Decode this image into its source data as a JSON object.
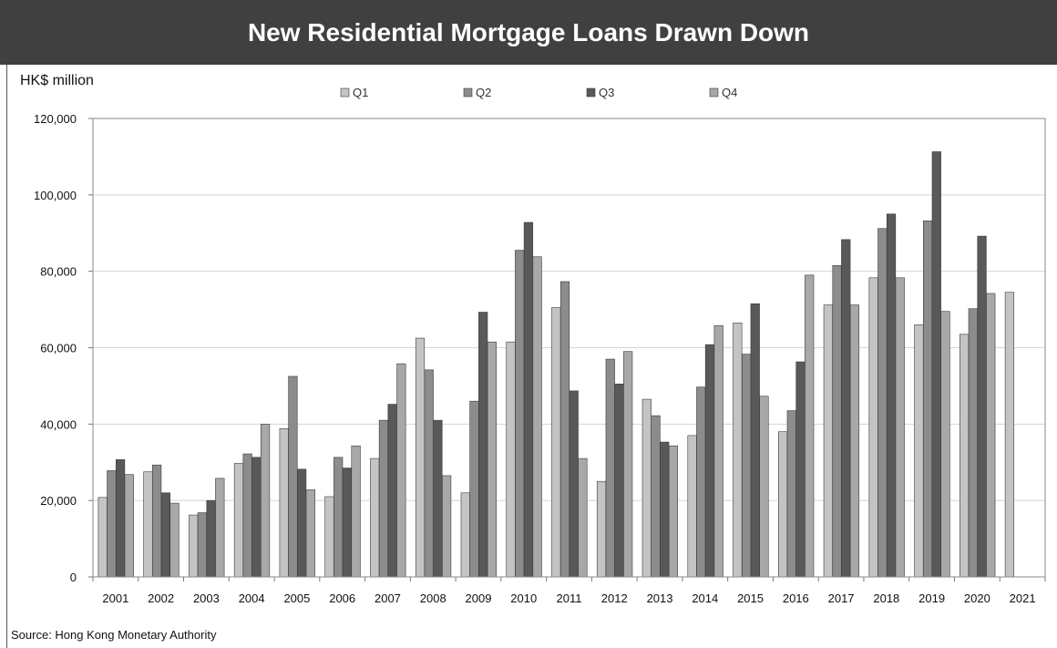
{
  "header": {
    "title": "New Residential Mortgage Loans Drawn Down"
  },
  "unit_label": "HK$ million",
  "source": "Source: Hong Kong Monetary Authority",
  "colors": {
    "header_bg": "#404040",
    "Q1": "#c4c4c4",
    "Q2": "#8c8c8c",
    "Q3": "#595959",
    "Q4": "#a8a8a8"
  },
  "chart_data": {
    "type": "bar",
    "title": "New Residential Mortgage Loans Drawn Down",
    "xlabel": "",
    "ylabel": "HK$ million",
    "ylim": [
      0,
      120000
    ],
    "yticks": [
      0,
      20000,
      40000,
      60000,
      80000,
      100000,
      120000
    ],
    "ytick_labels": [
      "0",
      "20,000",
      "40,000",
      "60,000",
      "80,000",
      "100,000",
      "120,000"
    ],
    "grid": true,
    "legend": "top",
    "categories": [
      "2001",
      "2002",
      "2003",
      "2004",
      "2005",
      "2006",
      "2007",
      "2008",
      "2009",
      "2010",
      "2011",
      "2012",
      "2013",
      "2014",
      "2015",
      "2016",
      "2017",
      "2018",
      "2019",
      "2020",
      "2021"
    ],
    "series": [
      {
        "name": "Q1",
        "values": [
          20800,
          27500,
          16200,
          29700,
          38800,
          21000,
          31000,
          62500,
          22000,
          61500,
          70500,
          25000,
          46500,
          37000,
          66500,
          38000,
          71200,
          78300,
          66000,
          63500,
          74500
        ]
      },
      {
        "name": "Q2",
        "values": [
          27800,
          29300,
          16800,
          32200,
          52500,
          31300,
          41000,
          54200,
          46000,
          85500,
          77300,
          57000,
          42200,
          49700,
          58300,
          43500,
          81500,
          91200,
          93200,
          70200,
          null
        ]
      },
      {
        "name": "Q3",
        "values": [
          30700,
          22000,
          20000,
          31300,
          28200,
          28500,
          45200,
          41000,
          69300,
          92800,
          48700,
          50500,
          35300,
          60800,
          71500,
          56300,
          88300,
          95000,
          111300,
          89200,
          null
        ]
      },
      {
        "name": "Q4",
        "values": [
          26800,
          19300,
          25800,
          40000,
          22800,
          34300,
          55800,
          26500,
          61500,
          83800,
          31000,
          59000,
          34300,
          65800,
          47300,
          79000,
          71200,
          78300,
          69500,
          74200,
          null
        ]
      }
    ]
  }
}
